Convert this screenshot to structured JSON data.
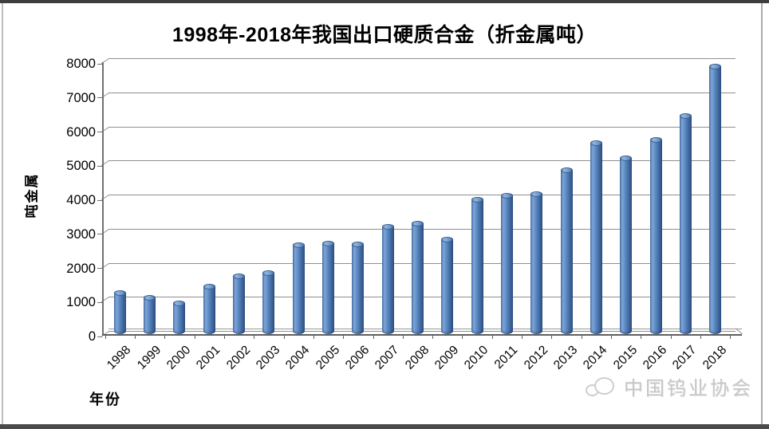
{
  "chart_data": {
    "type": "bar",
    "style": "3d-cylinder",
    "title": "1998年-2018年我国出口硬质合金（折金属吨）",
    "xlabel": "年份",
    "ylabel": "吨金属",
    "categories": [
      "1998",
      "1999",
      "2000",
      "2001",
      "2002",
      "2003",
      "2004",
      "2005",
      "2006",
      "2007",
      "2008",
      "2009",
      "2010",
      "2011",
      "2012",
      "2013",
      "2014",
      "2015",
      "2016",
      "2017",
      "2018"
    ],
    "values": [
      1200,
      1060,
      900,
      1400,
      1700,
      1800,
      2600,
      2650,
      2620,
      3150,
      3250,
      2780,
      3950,
      4050,
      4100,
      4800,
      5600,
      5150,
      5700,
      6400,
      7850
    ],
    "ylim": [
      0,
      8000
    ],
    "yticks": [
      0,
      1000,
      2000,
      3000,
      4000,
      5000,
      6000,
      7000,
      8000
    ],
    "grid": true,
    "legend": "none",
    "bar_color": "#4f81bd",
    "gridline_color": "#8f8f8f"
  },
  "watermark": {
    "text": "中国钨业协会",
    "color": "#c6c6c6"
  }
}
